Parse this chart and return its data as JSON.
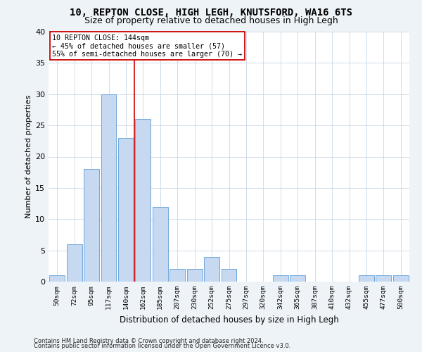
{
  "title1": "10, REPTON CLOSE, HIGH LEGH, KNUTSFORD, WA16 6TS",
  "title2": "Size of property relative to detached houses in High Legh",
  "xlabel": "Distribution of detached houses by size in High Legh",
  "ylabel": "Number of detached properties",
  "categories": [
    "50sqm",
    "72sqm",
    "95sqm",
    "117sqm",
    "140sqm",
    "162sqm",
    "185sqm",
    "207sqm",
    "230sqm",
    "252sqm",
    "275sqm",
    "297sqm",
    "320sqm",
    "342sqm",
    "365sqm",
    "387sqm",
    "410sqm",
    "432sqm",
    "455sqm",
    "477sqm",
    "500sqm"
  ],
  "values": [
    1,
    6,
    18,
    30,
    23,
    26,
    12,
    2,
    2,
    4,
    2,
    0,
    0,
    1,
    1,
    0,
    0,
    0,
    1,
    1,
    1
  ],
  "bar_color": "#c6d9f0",
  "bar_edge_color": "#6fa8dc",
  "vline_x": 4.5,
  "vline_color": "#cc0000",
  "annotation_line1": "10 REPTON CLOSE: 144sqm",
  "annotation_line2": "← 45% of detached houses are smaller (57)",
  "annotation_line3": "55% of semi-detached houses are larger (70) →",
  "annotation_box_color": "white",
  "annotation_box_edge_color": "#cc0000",
  "ylim": [
    0,
    40
  ],
  "yticks": [
    0,
    5,
    10,
    15,
    20,
    25,
    30,
    35,
    40
  ],
  "footer1": "Contains HM Land Registry data © Crown copyright and database right 2024.",
  "footer2": "Contains public sector information licensed under the Open Government Licence v3.0.",
  "bg_color": "#eef3f8",
  "plot_bg_color": "#ffffff",
  "grid_color": "#c8d8e8"
}
